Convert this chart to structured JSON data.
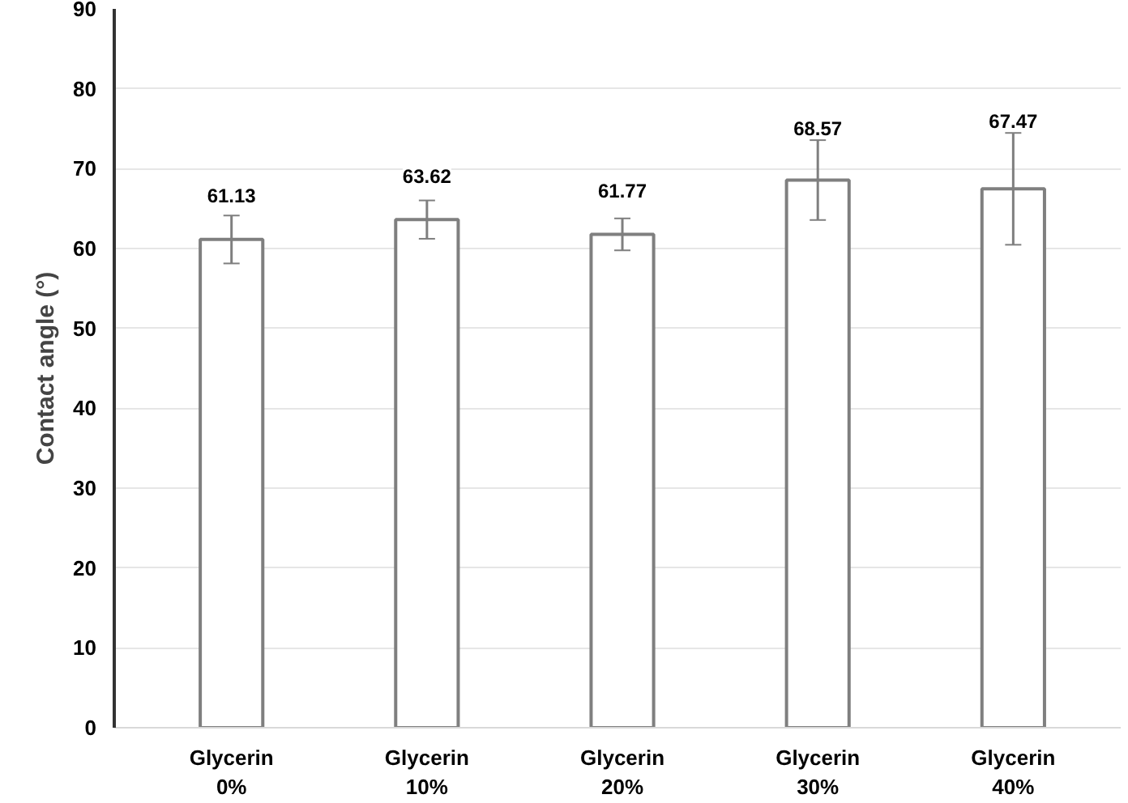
{
  "chart_data": {
    "type": "bar",
    "ylabel": "Contact angle (°)",
    "categories": [
      "Glycerin\n0%",
      "Glycerin\n10%",
      "Glycerin\n20%",
      "Glycerin\n30%",
      "Glycerin\n40%"
    ],
    "values": [
      61.13,
      63.62,
      61.77,
      68.57,
      67.47
    ],
    "errors": [
      3,
      2.4,
      2,
      5,
      7
    ],
    "color": "#ffffff",
    "data_labels": true,
    "ylim": [
      0,
      90
    ],
    "yticks": [
      0,
      10,
      20,
      30,
      40,
      50,
      60,
      70,
      80,
      90
    ],
    "grid": "y"
  }
}
